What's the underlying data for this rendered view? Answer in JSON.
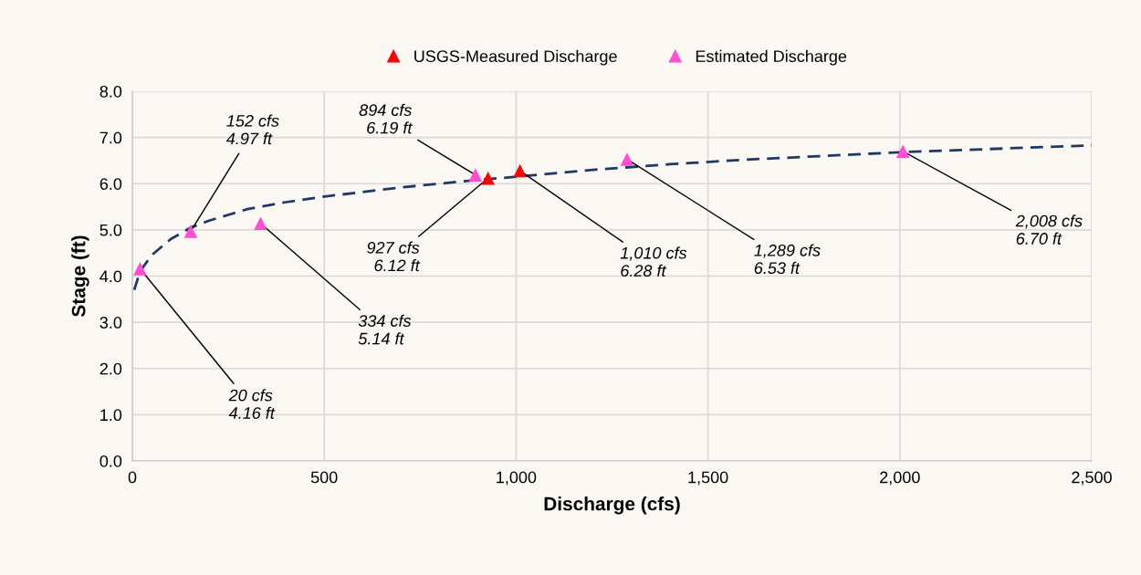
{
  "chart_data": {
    "type": "scatter",
    "xlabel": "Discharge (cfs)",
    "ylabel": "Stage (ft)",
    "xlim": [
      0,
      2500
    ],
    "ylim": [
      0,
      8
    ],
    "xticks": [
      0,
      500,
      {
        "value": 1000,
        "label": "1,000"
      },
      {
        "value": 1500,
        "label": "1,500"
      },
      {
        "value": 2000,
        "label": "2,000"
      },
      {
        "value": 2500,
        "label": "2,500"
      }
    ],
    "yticks": [
      {
        "value": 0,
        "label": "0.0"
      },
      {
        "value": 1,
        "label": "1.0"
      },
      {
        "value": 2,
        "label": "2.0"
      },
      {
        "value": 3,
        "label": "3.0"
      },
      {
        "value": 4,
        "label": "4.0"
      },
      {
        "value": 5,
        "label": "5.0"
      },
      {
        "value": 6,
        "label": "6.0"
      },
      {
        "value": 7,
        "label": "7.0"
      },
      {
        "value": 8,
        "label": "8.0"
      }
    ],
    "grid": true,
    "legend": "top",
    "marker": "triangle",
    "series": [
      {
        "type": "line",
        "color": "#1f3864",
        "line_style": "dashed",
        "marker": "none",
        "x": [
          5,
          20,
          50,
          100,
          152,
          200,
          300,
          400,
          500,
          600,
          700,
          800,
          900,
          1000,
          1200,
          1400,
          1600,
          1800,
          2000,
          2200,
          2500
        ],
        "values": [
          3.7,
          4.1,
          4.45,
          4.8,
          5.05,
          5.2,
          5.45,
          5.6,
          5.72,
          5.82,
          5.92,
          6.0,
          6.08,
          6.15,
          6.3,
          6.42,
          6.52,
          6.6,
          6.68,
          6.74,
          6.83
        ]
      },
      {
        "name": "USGS-Measured Discharge",
        "color": "#ff0000",
        "x": [
          927,
          1010
        ],
        "values": [
          6.12,
          6.28
        ]
      },
      {
        "name": "Estimated Discharge",
        "color": "#ff4fd0",
        "x": [
          20,
          152,
          334,
          894,
          1289,
          2008
        ],
        "values": [
          4.16,
          4.97,
          5.14,
          6.19,
          6.53,
          6.7
        ]
      }
    ],
    "annotations": [
      {
        "text": "20 cfs\n4.16 ft",
        "x": 20,
        "y": 4.16
      },
      {
        "text": "152 cfs\n4.97 ft",
        "x": 152,
        "y": 4.97
      },
      {
        "text": "334 cfs\n5.14 ft",
        "x": 334,
        "y": 5.14
      },
      {
        "text": "894 cfs\n6.19 ft",
        "x": 894,
        "y": 6.19
      },
      {
        "text": "927 cfs\n6.12 ft",
        "x": 927,
        "y": 6.12
      },
      {
        "text": "1,010 cfs\n6.28 ft",
        "x": 1010,
        "y": 6.28
      },
      {
        "text": "1,289 cfs\n6.53 ft",
        "x": 1289,
        "y": 6.53
      },
      {
        "text": "2,008 cfs\n6.70 ft",
        "x": 2008,
        "y": 6.7
      }
    ]
  }
}
